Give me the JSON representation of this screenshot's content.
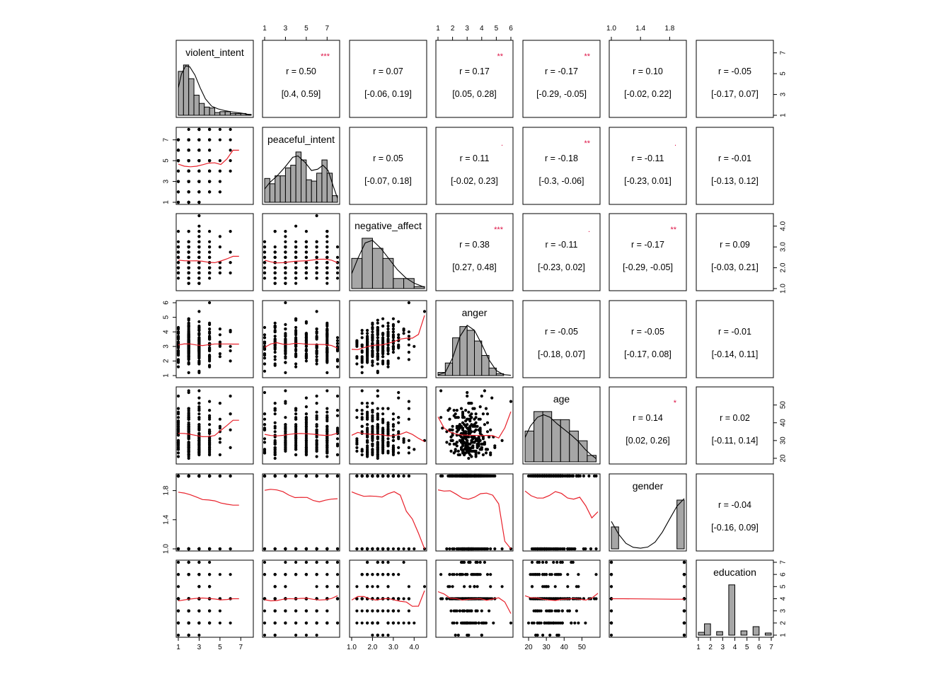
{
  "chart_data": {
    "type": "scatter-matrix",
    "variables": [
      {
        "name": "violent_intent",
        "min": 1,
        "max": 8,
        "ticks": [
          1,
          3,
          5,
          7
        ],
        "tick_labels": [
          "1",
          "3",
          "5",
          "7"
        ]
      },
      {
        "name": "peaceful_intent",
        "min": 1,
        "max": 8,
        "ticks": [
          1,
          3,
          5,
          7
        ],
        "tick_labels": [
          "1",
          "3",
          "5",
          "7"
        ]
      },
      {
        "name": "negative_affect",
        "min": 1,
        "max": 4.5,
        "ticks": [
          1,
          2,
          3,
          4
        ],
        "tick_labels": [
          "1.0",
          "2.0",
          "3.0",
          "4.0"
        ]
      },
      {
        "name": "anger",
        "min": 1,
        "max": 6,
        "ticks": [
          1,
          2,
          3,
          4,
          5,
          6
        ],
        "tick_labels": [
          "1",
          "2",
          "3",
          "4",
          "5",
          "6"
        ]
      },
      {
        "name": "age",
        "min": 18,
        "max": 59,
        "ticks": [
          20,
          30,
          40,
          50
        ],
        "tick_labels": [
          "20",
          "30",
          "40",
          "50"
        ]
      },
      {
        "name": "gender",
        "min": 1,
        "max": 2,
        "ticks": [
          1.0,
          1.4,
          1.8
        ],
        "tick_labels": [
          "1.0",
          "1.4",
          "1.8"
        ]
      },
      {
        "name": "education",
        "min": 1,
        "max": 7,
        "ticks": [
          1,
          2,
          3,
          4,
          5,
          6,
          7
        ],
        "tick_labels": [
          "1",
          "2",
          "3",
          "4",
          "5",
          "6",
          "7"
        ]
      }
    ],
    "correlations": [
      {
        "row": 0,
        "col": 1,
        "r": "r  = 0.50",
        "ci": "[0.4, 0.59]",
        "stars": "***"
      },
      {
        "row": 0,
        "col": 2,
        "r": "r  = 0.07",
        "ci": "[-0.06, 0.19]",
        "stars": ""
      },
      {
        "row": 0,
        "col": 3,
        "r": "r  = 0.17",
        "ci": "[0.05, 0.28]",
        "stars": "**"
      },
      {
        "row": 0,
        "col": 4,
        "r": "r  = -0.17",
        "ci": "[-0.29, -0.05]",
        "stars": "**"
      },
      {
        "row": 0,
        "col": 5,
        "r": "r  = 0.10",
        "ci": "[-0.02, 0.22]",
        "stars": ""
      },
      {
        "row": 0,
        "col": 6,
        "r": "r  = -0.05",
        "ci": "[-0.17, 0.07]",
        "stars": ""
      },
      {
        "row": 1,
        "col": 2,
        "r": "r  = 0.05",
        "ci": "[-0.07, 0.18]",
        "stars": ""
      },
      {
        "row": 1,
        "col": 3,
        "r": "r  = 0.11",
        "ci": "[-0.02, 0.23]",
        "stars": "."
      },
      {
        "row": 1,
        "col": 4,
        "r": "r  = -0.18",
        "ci": "[-0.3, -0.06]",
        "stars": "**"
      },
      {
        "row": 1,
        "col": 5,
        "r": "r  = -0.11",
        "ci": "[-0.23, 0.01]",
        "stars": "."
      },
      {
        "row": 1,
        "col": 6,
        "r": "r  = -0.01",
        "ci": "[-0.13, 0.12]",
        "stars": ""
      },
      {
        "row": 2,
        "col": 3,
        "r": "r  = 0.38",
        "ci": "[0.27, 0.48]",
        "stars": "***"
      },
      {
        "row": 2,
        "col": 4,
        "r": "r  = -0.11",
        "ci": "[-0.23, 0.02]",
        "stars": "."
      },
      {
        "row": 2,
        "col": 5,
        "r": "r  = -0.17",
        "ci": "[-0.29, -0.05]",
        "stars": "**"
      },
      {
        "row": 2,
        "col": 6,
        "r": "r  = 0.09",
        "ci": "[-0.03, 0.21]",
        "stars": ""
      },
      {
        "row": 3,
        "col": 4,
        "r": "r  = -0.05",
        "ci": "[-0.18, 0.07]",
        "stars": ""
      },
      {
        "row": 3,
        "col": 5,
        "r": "r  = -0.05",
        "ci": "[-0.17, 0.08]",
        "stars": ""
      },
      {
        "row": 3,
        "col": 6,
        "r": "r  = -0.01",
        "ci": "[-0.14, 0.11]",
        "stars": ""
      },
      {
        "row": 4,
        "col": 5,
        "r": "r  = 0.14",
        "ci": "[0.02, 0.26]",
        "stars": "*"
      },
      {
        "row": 4,
        "col": 6,
        "r": "r  = 0.02",
        "ci": "[-0.11, 0.14]",
        "stars": ""
      },
      {
        "row": 5,
        "col": 6,
        "r": "r  = -0.04",
        "ci": "[-0.16, 0.09]",
        "stars": ""
      }
    ],
    "histograms": [
      {
        "var": 0,
        "bins": [
          1,
          1.5,
          2,
          2.5,
          3,
          3.5,
          4,
          4.5,
          5,
          5.5,
          6,
          6.5,
          7,
          7.5,
          8
        ],
        "counts": [
          48,
          55,
          40,
          22,
          13,
          9,
          8,
          3,
          4,
          4,
          2,
          2,
          2,
          1
        ],
        "density": [
          [
            1,
            30
          ],
          [
            1.3,
            45
          ],
          [
            1.7,
            54
          ],
          [
            2.1,
            53
          ],
          [
            2.6,
            44
          ],
          [
            3.1,
            30
          ],
          [
            3.6,
            18
          ],
          [
            4.2,
            10
          ],
          [
            4.8,
            7
          ],
          [
            5.5,
            5
          ],
          [
            6.3,
            3.5
          ],
          [
            7,
            2.5
          ],
          [
            8,
            0.5
          ]
        ]
      },
      {
        "var": 1,
        "bins": [
          1,
          1.5,
          2,
          2.5,
          3,
          3.5,
          4,
          4.5,
          5,
          5.5,
          6,
          6.5,
          7,
          7.5,
          8
        ],
        "counts": [
          18,
          14,
          20,
          20,
          26,
          28,
          38,
          32,
          17,
          16,
          22,
          32,
          22,
          5
        ],
        "density": [
          [
            1,
            10
          ],
          [
            1.5,
            15
          ],
          [
            2.2,
            20
          ],
          [
            3,
            27
          ],
          [
            3.7,
            34
          ],
          [
            4.2,
            35
          ],
          [
            4.9,
            30
          ],
          [
            5.5,
            24
          ],
          [
            6.1,
            25
          ],
          [
            6.6,
            28
          ],
          [
            7.1,
            24
          ],
          [
            7.6,
            12
          ],
          [
            8,
            3
          ]
        ]
      },
      {
        "var": 2,
        "bins": [
          1,
          1.5,
          2,
          2.5,
          3,
          3.5,
          4,
          4.5
        ],
        "counts": [
          45,
          75,
          60,
          45,
          15,
          15,
          3
        ],
        "density": [
          [
            1,
            22
          ],
          [
            1.3,
            45
          ],
          [
            1.65,
            68
          ],
          [
            2.0,
            72
          ],
          [
            2.4,
            60
          ],
          [
            2.8,
            44
          ],
          [
            3.2,
            28
          ],
          [
            3.6,
            16
          ],
          [
            4.0,
            8
          ],
          [
            4.5,
            2
          ]
        ]
      },
      {
        "var": 3,
        "bins": [
          1,
          1.5,
          2,
          2.5,
          3,
          3.5,
          4,
          4.5,
          5,
          5.5
        ],
        "counts": [
          5,
          20,
          60,
          78,
          72,
          55,
          32,
          12,
          3
        ],
        "density": [
          [
            1,
            1
          ],
          [
            1.5,
            5
          ],
          [
            2,
            28
          ],
          [
            2.5,
            62
          ],
          [
            3,
            80
          ],
          [
            3.5,
            72
          ],
          [
            4,
            50
          ],
          [
            4.5,
            25
          ],
          [
            5,
            8
          ],
          [
            5.5,
            1.5
          ],
          [
            6,
            0.5
          ]
        ]
      },
      {
        "var": 4,
        "bins": [
          18,
          23,
          28,
          33,
          38,
          43,
          48,
          53,
          58
        ],
        "counts": [
          38,
          62,
          62,
          52,
          52,
          38,
          26,
          8
        ],
        "density": [
          [
            18,
            30
          ],
          [
            21,
            44
          ],
          [
            25,
            55
          ],
          [
            28.5,
            58
          ],
          [
            32,
            55
          ],
          [
            36,
            47
          ],
          [
            40,
            40
          ],
          [
            44,
            33
          ],
          [
            48,
            25
          ],
          [
            52,
            15
          ],
          [
            55,
            9
          ],
          [
            58,
            4
          ]
        ]
      },
      {
        "var": 5,
        "bins": [
          1,
          1.1,
          1.9,
          2
        ],
        "counts": [
          72,
          0,
          160
        ],
        "density": [
          [
            1,
            90
          ],
          [
            1.1,
            48
          ],
          [
            1.2,
            18
          ],
          [
            1.3,
            5
          ],
          [
            1.4,
            2
          ],
          [
            1.5,
            6
          ],
          [
            1.6,
            22
          ],
          [
            1.7,
            55
          ],
          [
            1.8,
            98
          ],
          [
            1.9,
            140
          ],
          [
            2,
            165
          ]
        ]
      },
      {
        "var": 6,
        "bins": [
          1,
          1.5,
          2,
          2.5,
          3,
          3.5,
          4,
          4.5,
          5,
          5.5,
          6,
          6.5,
          7
        ],
        "counts": [
          8,
          32,
          0,
          10,
          0,
          142,
          0,
          12,
          0,
          24,
          0,
          6
        ],
        "density": []
      }
    ]
  }
}
